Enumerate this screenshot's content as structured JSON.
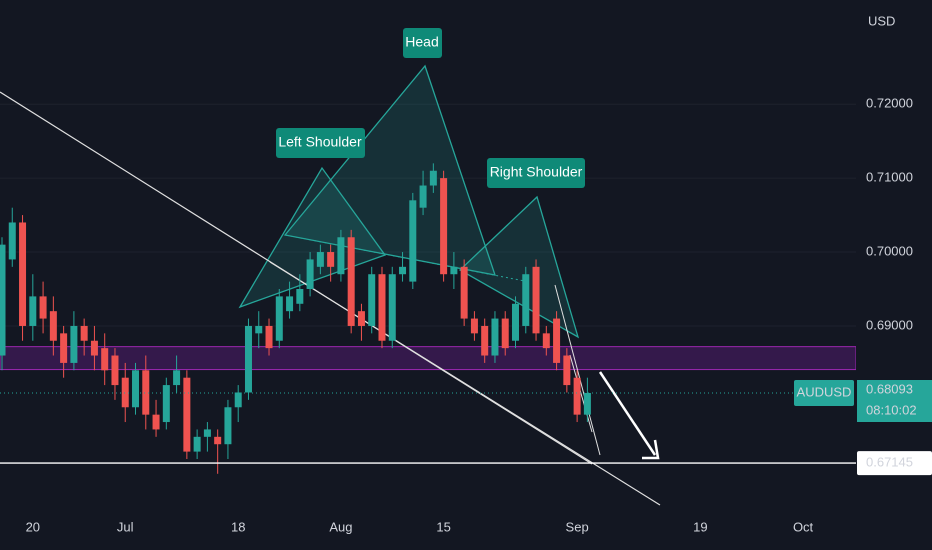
{
  "chart_data": {
    "type": "candlestick",
    "axis_label": "USD",
    "symbol": "AUDUSD",
    "last_price": 0.68093,
    "countdown": "08:10:02",
    "price_line": 0.67145,
    "zone": [
      0.6841,
      0.6872
    ],
    "up_color": "#26a69a",
    "down_color": "#ef5350",
    "annotations": [
      "Left Shoulder",
      "Head",
      "Right Shoulder"
    ],
    "ylim": [
      0.6651,
      0.7341
    ],
    "yticks": [
      {
        "value": 0.69,
        "label": "0.69000"
      },
      {
        "value": 0.7,
        "label": "0.70000"
      },
      {
        "value": 0.71,
        "label": "0.71000"
      },
      {
        "value": 0.72,
        "label": "0.72000"
      }
    ],
    "grid": true,
    "categories": [
      null,
      null,
      null,
      "20",
      null,
      null,
      null,
      null,
      null,
      null,
      null,
      null,
      "Jul",
      null,
      null,
      null,
      null,
      null,
      null,
      null,
      null,
      null,
      null,
      "18",
      null,
      null,
      null,
      null,
      null,
      null,
      null,
      null,
      null,
      "Aug",
      null,
      null,
      null,
      null,
      null,
      null,
      null,
      null,
      null,
      "15",
      null,
      null,
      null,
      null,
      null,
      null,
      null,
      null,
      null,
      null,
      null,
      null,
      "Sep",
      null,
      null,
      null,
      null,
      null,
      null,
      null,
      null,
      null,
      null,
      null,
      "19",
      null,
      null,
      null,
      null,
      null,
      null,
      null,
      null,
      null,
      "Oct",
      null,
      null,
      null,
      null
    ],
    "series": [
      {
        "name": "AUDUSD",
        "open": [
          0.686,
          0.699,
          0.704,
          0.69,
          0.694,
          0.692,
          0.689,
          0.685,
          0.69,
          0.688,
          0.687,
          0.686,
          0.683,
          0.679,
          0.684,
          0.678,
          0.677,
          0.682,
          0.683,
          0.673,
          0.675,
          0.675,
          0.674,
          0.679,
          0.681,
          0.689,
          0.69,
          0.688,
          0.692,
          0.693,
          0.695,
          0.698,
          0.7,
          0.697,
          0.702,
          0.692,
          0.69,
          0.697,
          0.688,
          0.697,
          0.696,
          0.706,
          0.709,
          0.71,
          0.697,
          0.698,
          0.691,
          0.69,
          0.686,
          0.691,
          0.688,
          0.69,
          0.698,
          0.689,
          0.691,
          0.686,
          0.683,
          0.678,
          null,
          null,
          null,
          null,
          null,
          null,
          null,
          null,
          null,
          null,
          null,
          null,
          null,
          null,
          null,
          null,
          null,
          null,
          null,
          null,
          null,
          null,
          null,
          null,
          null
        ],
        "high": [
          0.702,
          0.706,
          0.705,
          0.697,
          0.696,
          0.694,
          0.69,
          0.692,
          0.691,
          0.69,
          0.689,
          0.687,
          0.685,
          0.685,
          0.686,
          0.68,
          0.683,
          0.686,
          0.684,
          0.676,
          0.677,
          0.676,
          0.68,
          0.682,
          0.691,
          0.692,
          0.691,
          0.695,
          0.696,
          0.697,
          0.7,
          0.701,
          0.701,
          0.703,
          0.703,
          0.693,
          0.698,
          0.698,
          0.698,
          0.7,
          0.708,
          0.711,
          0.712,
          0.711,
          0.7,
          0.699,
          0.692,
          0.691,
          0.692,
          0.692,
          0.694,
          0.698,
          0.699,
          0.69,
          0.692,
          0.687,
          0.684,
          0.683,
          null,
          null,
          null,
          null,
          null,
          null,
          null,
          null,
          null,
          null,
          null,
          null,
          null,
          null,
          null,
          null,
          null,
          null,
          null,
          null,
          null,
          null,
          null,
          null,
          null
        ],
        "low": [
          0.684,
          0.698,
          0.688,
          0.688,
          0.689,
          0.686,
          0.683,
          0.684,
          0.686,
          0.684,
          0.682,
          0.68,
          0.677,
          0.678,
          0.676,
          0.675,
          0.676,
          0.681,
          0.672,
          0.672,
          0.673,
          0.67,
          0.672,
          0.677,
          0.68,
          0.687,
          0.686,
          0.687,
          0.691,
          0.692,
          0.694,
          0.697,
          0.696,
          0.696,
          0.689,
          0.688,
          0.689,
          0.687,
          0.687,
          0.696,
          0.695,
          0.705,
          0.708,
          0.696,
          0.695,
          0.69,
          0.688,
          0.685,
          0.685,
          0.686,
          0.687,
          0.689,
          0.688,
          0.686,
          0.684,
          0.681,
          0.677,
          0.677,
          null,
          null,
          null,
          null,
          null,
          null,
          null,
          null,
          null,
          null,
          null,
          null,
          null,
          null,
          null,
          null,
          null,
          null,
          null,
          null,
          null,
          null,
          null,
          null,
          null
        ],
        "close": [
          0.701,
          0.704,
          0.69,
          0.694,
          0.691,
          0.688,
          0.685,
          0.69,
          0.688,
          0.686,
          0.684,
          0.682,
          0.679,
          0.684,
          0.678,
          0.676,
          0.682,
          0.684,
          0.673,
          0.675,
          0.676,
          0.674,
          0.679,
          0.681,
          0.69,
          0.69,
          0.687,
          0.694,
          0.694,
          0.695,
          0.699,
          0.7,
          0.698,
          0.702,
          0.69,
          0.69,
          0.697,
          0.688,
          0.697,
          0.698,
          0.707,
          0.709,
          0.711,
          0.697,
          0.698,
          0.691,
          0.689,
          0.686,
          0.691,
          0.687,
          0.693,
          0.697,
          0.689,
          0.687,
          0.685,
          0.682,
          0.678,
          0.68093,
          null,
          null,
          null,
          null,
          null,
          null,
          null,
          null,
          null,
          null,
          null,
          null,
          null,
          null,
          null,
          null,
          null,
          null,
          null,
          null,
          null,
          null,
          null,
          null,
          null
        ]
      }
    ]
  }
}
